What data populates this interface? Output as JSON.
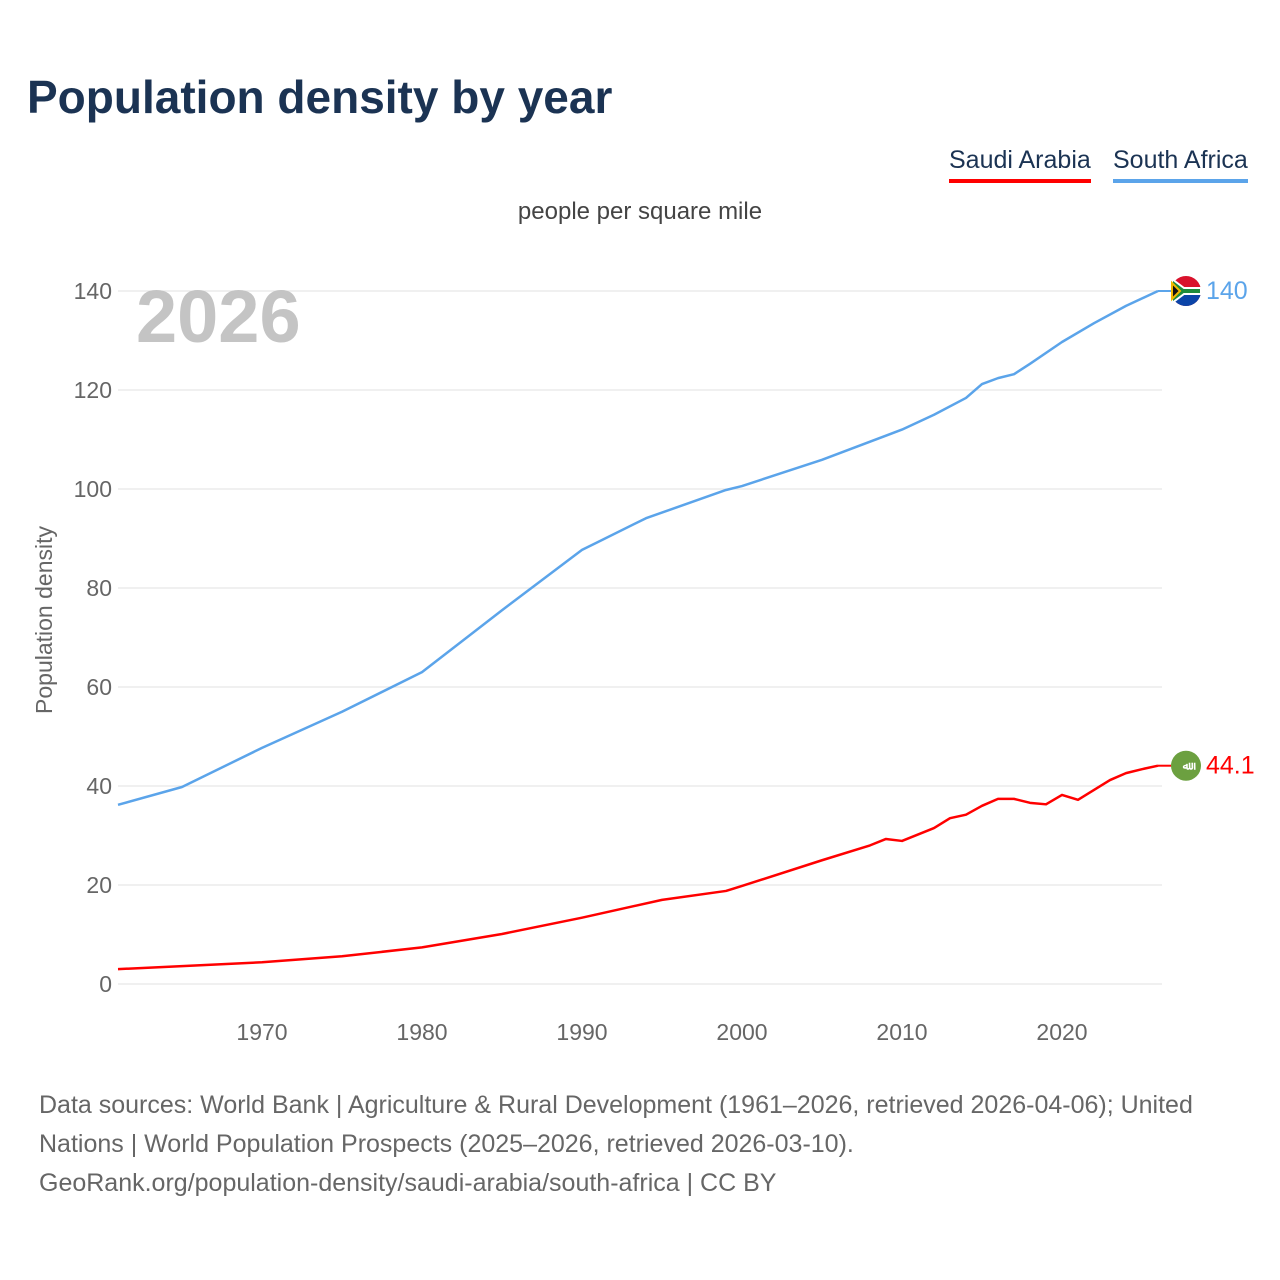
{
  "chart_data": {
    "type": "line",
    "title": "Population density by year",
    "subtitle": "people per square mile",
    "ylabel": "Population density",
    "xlabel": "",
    "year_watermark": "2026",
    "ylim": [
      0,
      140
    ],
    "xlim": [
      1961,
      2026
    ],
    "yticks": [
      0,
      20,
      40,
      60,
      80,
      100,
      120,
      140
    ],
    "xticks": [
      1970,
      1980,
      1990,
      2000,
      2010,
      2020
    ],
    "grid": true,
    "legend_position": "top-right",
    "series": [
      {
        "name": "Saudi Arabia",
        "color": "#ff0000",
        "end_label": "44.1",
        "icon": "saudi-arabia-flag-icon",
        "x": [
          1961,
          1965,
          1970,
          1975,
          1980,
          1985,
          1990,
          1995,
          1999,
          2000,
          2005,
          2008,
          2009,
          2010,
          2012,
          2013,
          2014,
          2015,
          2016,
          2017,
          2018,
          2019,
          2020,
          2021,
          2022,
          2023,
          2024,
          2025,
          2026
        ],
        "values": [
          3.0,
          3.6,
          4.4,
          5.6,
          7.4,
          10.1,
          13.4,
          17.0,
          18.8,
          19.8,
          25.0,
          28.0,
          29.3,
          28.9,
          31.5,
          33.5,
          34.2,
          36.0,
          37.4,
          37.4,
          36.6,
          36.3,
          38.2,
          37.2,
          39.2,
          41.2,
          42.6,
          43.4,
          44.1
        ]
      },
      {
        "name": "South Africa",
        "color": "#5ba4ea",
        "end_label": "140",
        "icon": "south-africa-flag-icon",
        "x": [
          1961,
          1965,
          1970,
          1975,
          1980,
          1985,
          1990,
          1991,
          1994,
          1999,
          2000,
          2005,
          2010,
          2012,
          2014,
          2015,
          2016,
          2017,
          2018,
          2020,
          2022,
          2024,
          2026
        ],
        "values": [
          36.2,
          39.8,
          47.7,
          55.0,
          63.0,
          75.5,
          87.7,
          89.3,
          94.1,
          99.8,
          100.6,
          105.9,
          112.0,
          115.0,
          118.4,
          121.2,
          122.4,
          123.2,
          125.3,
          129.7,
          133.5,
          137.0,
          140.0
        ]
      }
    ]
  },
  "footer": {
    "source": "Data sources: World Bank | Agriculture & Rural Development (1961–2026, retrieved 2026-04-06); United Nations | World Population Prospects (2025–2026, retrieved 2026-03-10).",
    "attribution": "GeoRank.org/population-density/saudi-arabia/south-africa | CC BY"
  }
}
